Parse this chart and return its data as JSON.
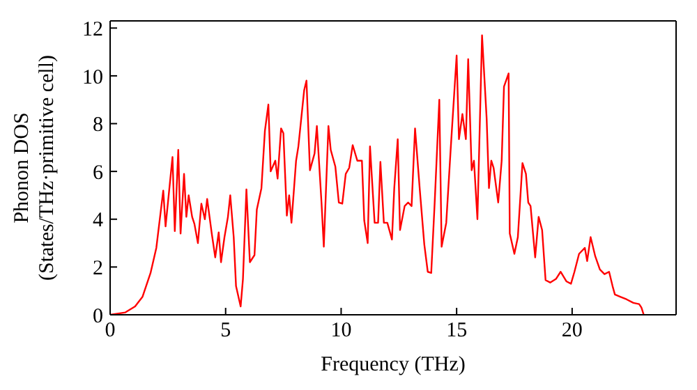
{
  "chart_data": {
    "type": "line",
    "xlabel": "Frequency (THz)",
    "ylabel": "Phonon DOS\n(States/THz·primitive cell)",
    "xlim": [
      0,
      24.5
    ],
    "xticks": [
      0,
      5,
      10,
      15,
      20
    ],
    "ylim": [
      0,
      12.3
    ],
    "yticks": [
      0,
      2,
      4,
      6,
      8,
      10,
      12
    ],
    "grid": false,
    "legend": false,
    "marker": "none",
    "line_style": "solid",
    "series": [
      {
        "color": "#ff0000",
        "x": [
          0,
          0.66,
          1.08,
          1.4,
          1.75,
          2,
          2.2,
          2.3,
          2.4,
          2.7,
          2.8,
          2.95,
          3.05,
          3.2,
          3.3,
          3.4,
          3.55,
          3.65,
          3.8,
          3.95,
          4.1,
          4.2,
          4.4,
          4.55,
          4.7,
          4.8,
          4.95,
          5.1,
          5.2,
          5.35,
          5.45,
          5.65,
          5.75,
          5.9,
          6.05,
          6.25,
          6.35,
          6.55,
          6.7,
          6.85,
          6.95,
          7.15,
          7.25,
          7.4,
          7.5,
          7.65,
          7.75,
          7.85,
          8.05,
          8.15,
          8.4,
          8.5,
          8.65,
          8.85,
          8.95,
          9.15,
          9.25,
          9.45,
          9.55,
          9.75,
          9.9,
          10.05,
          10.2,
          10.35,
          10.5,
          10.7,
          10.9,
          11,
          11.15,
          11.25,
          11.45,
          11.6,
          11.7,
          11.85,
          12,
          12.2,
          12.3,
          12.45,
          12.55,
          12.75,
          12.9,
          13.05,
          13.2,
          13.4,
          13.6,
          13.75,
          13.9,
          14.05,
          14.25,
          14.35,
          14.55,
          14.75,
          15,
          15.1,
          15.25,
          15.4,
          15.5,
          15.65,
          15.75,
          15.9,
          16.1,
          16.3,
          16.4,
          16.5,
          16.6,
          16.8,
          16.95,
          17.05,
          17.25,
          17.3,
          17.5,
          17.65,
          17.85,
          18,
          18.1,
          18.2,
          18.4,
          18.55,
          18.7,
          18.85,
          19.05,
          19.3,
          19.5,
          19.75,
          19.95,
          20.1,
          20.3,
          20.55,
          20.65,
          20.8,
          21,
          21.2,
          21.4,
          21.6,
          21.75,
          21.85,
          22.1,
          22.35,
          22.65,
          22.9,
          23,
          23.1
        ],
        "values": [
          0,
          0.1,
          0.35,
          0.75,
          1.75,
          2.8,
          4.4,
          5.2,
          3.7,
          6.6,
          3.5,
          6.9,
          3.4,
          5.9,
          4.1,
          5,
          4.1,
          3.8,
          3,
          4.65,
          4,
          4.85,
          3.4,
          2.4,
          3.45,
          2.2,
          3.25,
          4.1,
          5,
          3.25,
          1.2,
          0.35,
          1.5,
          5.25,
          2.2,
          2.5,
          4.4,
          5.3,
          7.7,
          8.8,
          6,
          6.45,
          5.7,
          7.8,
          7.6,
          4.15,
          5,
          3.85,
          6.45,
          7.05,
          9.4,
          9.8,
          6.05,
          6.75,
          7.9,
          4.7,
          2.85,
          7.9,
          6.9,
          6.2,
          4.7,
          4.65,
          5.9,
          6.15,
          7.1,
          6.45,
          6.45,
          3.95,
          3,
          7.05,
          3.85,
          3.85,
          6.4,
          3.85,
          3.85,
          3.15,
          5.3,
          7.35,
          3.55,
          4.55,
          4.7,
          4.55,
          7.8,
          5.3,
          2.95,
          1.8,
          1.75,
          4.7,
          9,
          2.85,
          3.85,
          7.05,
          10.85,
          7.35,
          8.4,
          7.35,
          10.7,
          6.05,
          6.45,
          4,
          11.7,
          8.2,
          5.3,
          6.45,
          6.15,
          4.7,
          6.45,
          9.55,
          10.1,
          3.4,
          2.55,
          3.25,
          6.35,
          5.9,
          4.7,
          4.55,
          2.4,
          4.1,
          3.55,
          1.45,
          1.35,
          1.5,
          1.8,
          1.4,
          1.3,
          1.8,
          2.55,
          2.8,
          2.25,
          3.25,
          2.45,
          1.9,
          1.7,
          1.8,
          1.2,
          0.85,
          0.75,
          0.65,
          0.5,
          0.45,
          0.3,
          0
        ]
      }
    ]
  }
}
